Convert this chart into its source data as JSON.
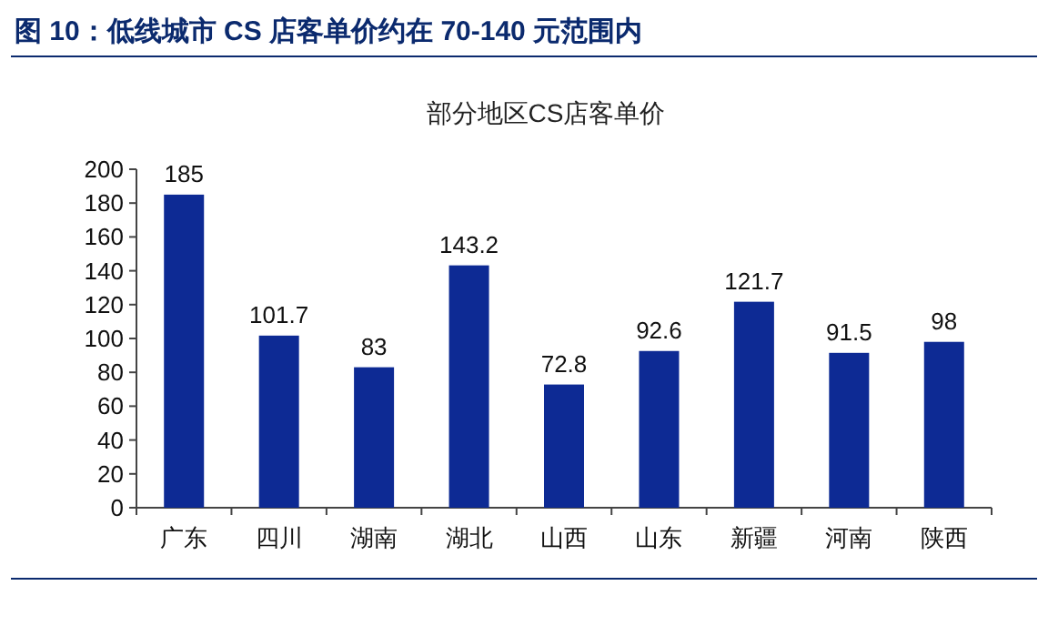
{
  "chart_data": {
    "type": "bar",
    "title": "图 10：低线城市 CS 店客单价约在 70-140 元范围内",
    "subtitle": "部分地区CS店客单价",
    "categories": [
      "广东",
      "四川",
      "湖南",
      "湖北",
      "山西",
      "山东",
      "新疆",
      "河南",
      "陕西"
    ],
    "values": [
      185,
      101.7,
      83,
      143.2,
      72.8,
      92.6,
      121.7,
      91.5,
      98
    ],
    "color": "#0d2a94",
    "ylim": [
      0,
      200
    ],
    "yticks": [
      0,
      20,
      40,
      60,
      80,
      100,
      120,
      140,
      160,
      180,
      200
    ],
    "data_labels": true,
    "grid": false
  }
}
